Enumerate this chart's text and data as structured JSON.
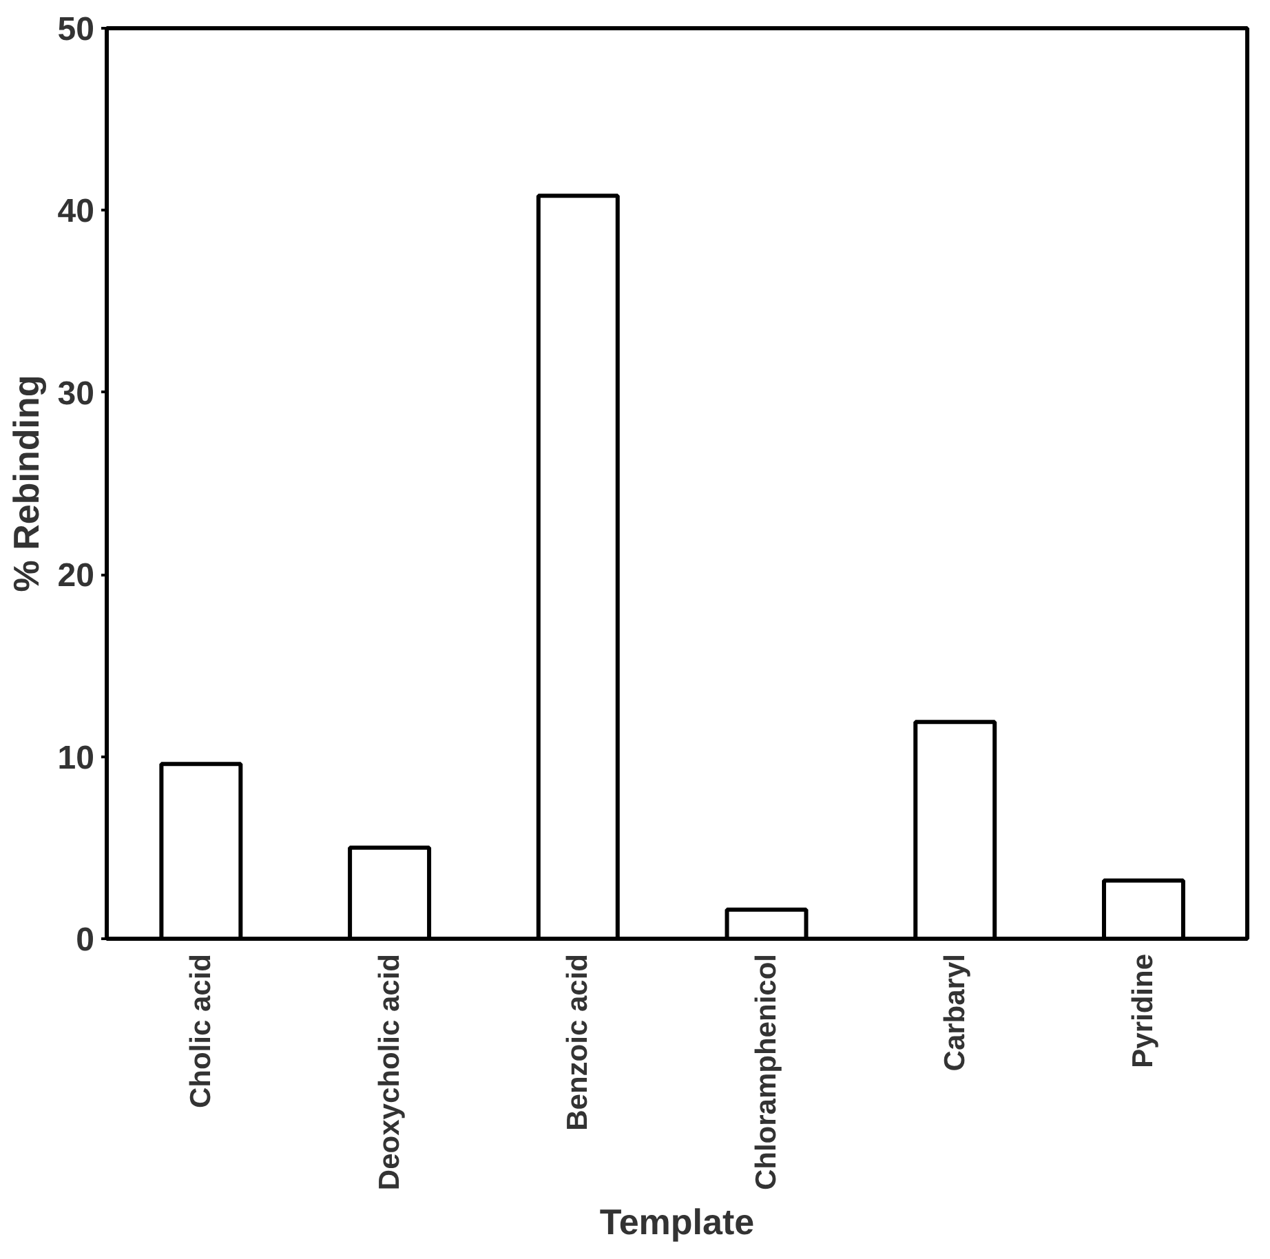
{
  "chart_data": {
    "type": "bar",
    "xlabel": "Template",
    "ylabel": "% Rebinding",
    "categories": [
      "Cholic acid",
      "Deoxycholic acid",
      "Benzoic acid",
      "Chloramphenicol",
      "Carbaryl",
      "Pyridine"
    ],
    "values": [
      9.6,
      5.0,
      40.8,
      1.6,
      11.9,
      3.2
    ],
    "color": "#ffffff",
    "ylim": [
      0,
      50
    ],
    "yticks": [
      0,
      10,
      20,
      30,
      40,
      50
    ],
    "grid": false
  }
}
